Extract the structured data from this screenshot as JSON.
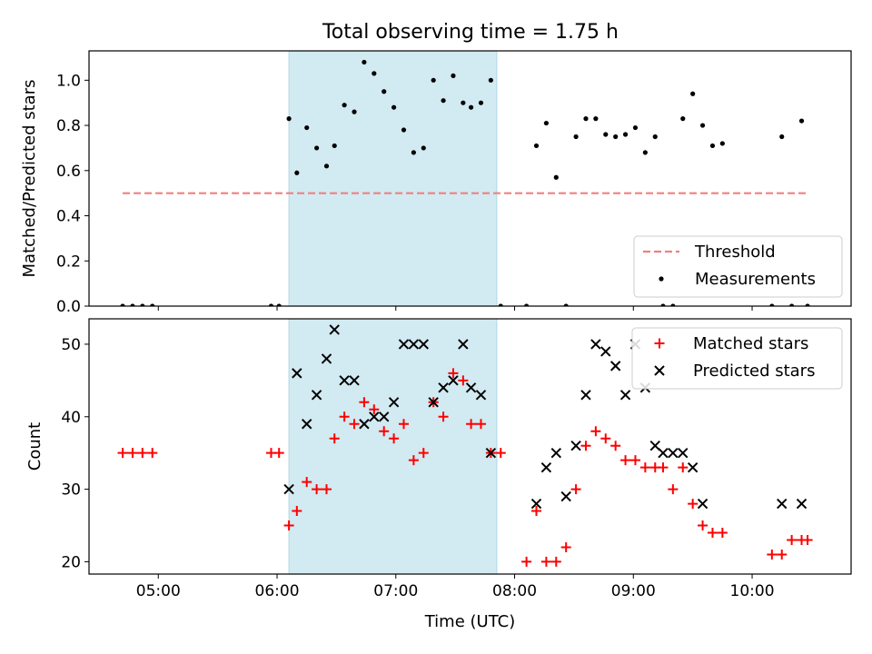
{
  "title": "Total observing time = 1.75 h",
  "chart_data": [
    {
      "type": "scatter",
      "ylabel": "Matched/Predicted stars",
      "xlabel": "",
      "xlim": [
        "04:25",
        "10:50"
      ],
      "ylim": [
        0,
        1.13
      ],
      "yticks": [
        0.0,
        0.2,
        0.4,
        0.6,
        0.8,
        1.0
      ],
      "ytick_labels": [
        "0.0",
        "0.2",
        "0.4",
        "0.6",
        "0.8",
        "1.0"
      ],
      "shaded_span": [
        "06:06",
        "07:51"
      ],
      "shaded_color": "#add8e6",
      "threshold": {
        "name": "Threshold",
        "y": 0.5,
        "x": [
          "04:42",
          "10:28"
        ],
        "color": "#f08080",
        "style": "dashed"
      },
      "series": [
        {
          "name": "Measurements",
          "marker": "dot",
          "color": "#000000",
          "x": [
            "04:42",
            "04:47",
            "04:52",
            "04:57",
            "05:57",
            "06:01",
            "06:06",
            "06:10",
            "06:15",
            "06:20",
            "06:25",
            "06:29",
            "06:34",
            "06:39",
            "06:44",
            "06:49",
            "06:54",
            "06:59",
            "07:04",
            "07:09",
            "07:14",
            "07:19",
            "07:24",
            "07:29",
            "07:34",
            "07:38",
            "07:43",
            "07:48",
            "07:53",
            "08:06",
            "08:11",
            "08:16",
            "08:21",
            "08:26",
            "08:31",
            "08:36",
            "08:41",
            "08:46",
            "08:51",
            "08:56",
            "09:01",
            "09:06",
            "09:11",
            "09:15",
            "09:20",
            "09:25",
            "09:30",
            "09:35",
            "09:40",
            "09:45",
            "10:10",
            "10:15",
            "10:20",
            "10:25",
            "10:28"
          ],
          "y": [
            0,
            0,
            0,
            0,
            0,
            0,
            0.83,
            0.59,
            0.79,
            0.7,
            0.62,
            0.71,
            0.89,
            0.86,
            1.08,
            1.03,
            0.95,
            0.88,
            0.78,
            0.68,
            0.7,
            1.0,
            0.91,
            1.02,
            0.9,
            0.88,
            0.9,
            1.0,
            0,
            0,
            0.71,
            0.81,
            0.57,
            0,
            0.75,
            0.83,
            0.83,
            0.76,
            0.75,
            0.76,
            0.79,
            0.68,
            0.75,
            0,
            0,
            0.83,
            0.94,
            0.8,
            0.71,
            0.72,
            0,
            0.75,
            0,
            0.82,
            0
          ]
        }
      ],
      "legend": {
        "position": "lower-right",
        "entries": [
          "Threshold",
          "Measurements"
        ]
      }
    },
    {
      "type": "scatter",
      "ylabel": "Count",
      "xlabel": "Time (UTC)",
      "xlim": [
        "04:25",
        "10:50"
      ],
      "ylim": [
        18.3,
        53.5
      ],
      "yticks": [
        20,
        30,
        40,
        50
      ],
      "ytick_labels": [
        "20",
        "30",
        "40",
        "50"
      ],
      "xticks": [
        "05:00",
        "06:00",
        "07:00",
        "08:00",
        "09:00",
        "10:00"
      ],
      "shaded_span": [
        "06:06",
        "07:51"
      ],
      "shaded_color": "#add8e6",
      "series": [
        {
          "name": "Matched stars",
          "marker": "plus",
          "color": "#ff0000",
          "x": [
            "04:42",
            "04:47",
            "04:52",
            "04:57",
            "05:57",
            "06:01",
            "06:06",
            "06:10",
            "06:15",
            "06:20",
            "06:25",
            "06:29",
            "06:34",
            "06:39",
            "06:44",
            "06:49",
            "06:54",
            "06:59",
            "07:04",
            "07:09",
            "07:14",
            "07:19",
            "07:24",
            "07:29",
            "07:34",
            "07:38",
            "07:43",
            "07:48",
            "07:53",
            "08:06",
            "08:11",
            "08:16",
            "08:21",
            "08:26",
            "08:31",
            "08:36",
            "08:41",
            "08:46",
            "08:51",
            "08:56",
            "09:01",
            "09:06",
            "09:11",
            "09:15",
            "09:20",
            "09:25",
            "09:30",
            "09:35",
            "09:40",
            "09:45",
            "10:10",
            "10:15",
            "10:20",
            "10:25",
            "10:28"
          ],
          "y": [
            35,
            35,
            35,
            35,
            35,
            35,
            25,
            27,
            31,
            30,
            30,
            37,
            40,
            39,
            42,
            41,
            38,
            37,
            39,
            34,
            35,
            42,
            40,
            46,
            45,
            39,
            39,
            35,
            35,
            20,
            27,
            20,
            20,
            22,
            30,
            36,
            38,
            37,
            36,
            34,
            34,
            33,
            33,
            33,
            30,
            33,
            28,
            25,
            24,
            24,
            21,
            21,
            23,
            23,
            23
          ]
        },
        {
          "name": "Predicted stars",
          "marker": "x",
          "color": "#000000",
          "x": [
            "06:06",
            "06:10",
            "06:15",
            "06:20",
            "06:25",
            "06:29",
            "06:34",
            "06:39",
            "06:44",
            "06:49",
            "06:54",
            "06:59",
            "07:04",
            "07:09",
            "07:14",
            "07:19",
            "07:24",
            "07:29",
            "07:34",
            "07:38",
            "07:43",
            "07:48",
            "08:11",
            "08:16",
            "08:21",
            "08:26",
            "08:31",
            "08:36",
            "08:41",
            "08:46",
            "08:51",
            "08:56",
            "09:01",
            "09:06",
            "09:11",
            "09:15",
            "09:20",
            "09:25",
            "09:30",
            "09:35",
            "10:15",
            "10:25"
          ],
          "y": [
            30,
            46,
            39,
            43,
            48,
            52,
            45,
            45,
            39,
            40,
            40,
            42,
            50,
            50,
            50,
            42,
            44,
            45,
            50,
            44,
            43,
            35,
            28,
            33,
            35,
            29,
            36,
            43,
            50,
            49,
            47,
            43,
            50,
            44,
            36,
            35,
            35,
            35,
            33,
            28,
            28,
            28
          ]
        }
      ],
      "legend": {
        "position": "upper-right",
        "entries": [
          "Matched stars",
          "Predicted stars"
        ]
      }
    }
  ]
}
